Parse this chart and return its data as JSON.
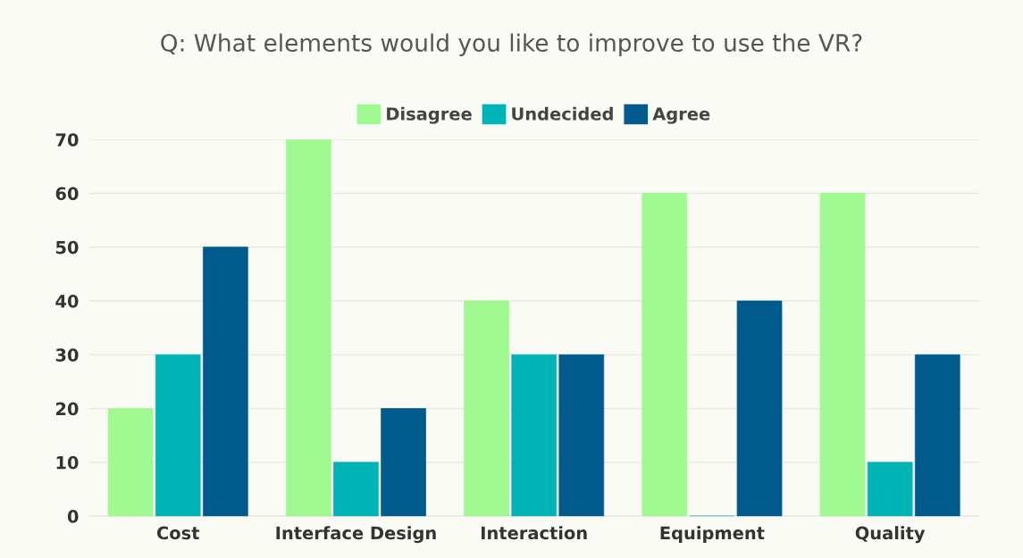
{
  "chart_data": {
    "type": "bar",
    "title": "Q: What elements would you like to improve to use the VR?",
    "categories": [
      "Cost",
      "Interface Design",
      "Interaction",
      "Equipment",
      "Quality"
    ],
    "series": [
      {
        "name": "Disagree",
        "color": "#a0f890",
        "values": [
          20,
          70,
          40,
          60,
          60
        ]
      },
      {
        "name": "Undecided",
        "color": "#00b3b6",
        "values": [
          30,
          10,
          30,
          0,
          10
        ]
      },
      {
        "name": "Agree",
        "color": "#005b8c",
        "values": [
          50,
          20,
          30,
          40,
          30
        ]
      }
    ],
    "ylim": [
      0,
      70
    ],
    "yticks": [
      0,
      10,
      20,
      30,
      40,
      50,
      60,
      70
    ],
    "grid": "y",
    "legend": "top"
  }
}
